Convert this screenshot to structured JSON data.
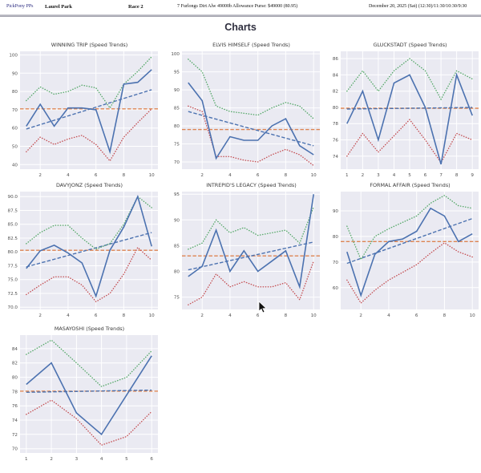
{
  "header": {
    "app": "PickPony PPs",
    "track": "Laurel Park",
    "race": "Race 2",
    "conditions": "7 Furlongs Dirt Alw 49000b Allowance Purse: $49000 (80.95)",
    "datetime": "December 20, 2025 (Sat) (12:30)/11:30/10:30/9:30"
  },
  "page_title": "Charts",
  "colors": {
    "speed_line": "#4c72b0",
    "upper_band": "#55a868",
    "lower_band": "#c44e52",
    "mean_line": "#dd8452",
    "trend_line": "#4c72b0",
    "plot_background": "#eaeaf2",
    "grid": "#ffffff"
  },
  "chart_data": [
    {
      "type": "line",
      "title": "WINNING TRIP (Speed Trends)",
      "x": [
        1,
        2,
        3,
        4,
        5,
        6,
        7,
        8,
        9,
        10
      ],
      "xticks": [
        2,
        4,
        6,
        8,
        10
      ],
      "yticks": [
        "40",
        "50",
        "60",
        "70",
        "80",
        "90",
        "100"
      ],
      "ylim": [
        37.5,
        102
      ],
      "grid": true,
      "series": [
        {
          "name": "mean",
          "style": "dashed",
          "color": "#dd8452",
          "flat": 70.5
        },
        {
          "name": "trend",
          "style": "dashed",
          "color": "#4c72b0",
          "line": [
            59.5,
            81
          ]
        },
        {
          "name": "upper-band",
          "style": "dotted",
          "color": "#55a868",
          "values": [
            75,
            82.5,
            78.5,
            80,
            83.5,
            82,
            71,
            84,
            91,
            99
          ]
        },
        {
          "name": "lower-band",
          "style": "dotted",
          "color": "#c44e52",
          "values": [
            47,
            55,
            51,
            54,
            56,
            51,
            42,
            55,
            63,
            70.5
          ]
        },
        {
          "name": "speed",
          "style": "solid",
          "color": "#4c72b0",
          "values": [
            61,
            73,
            61,
            71,
            71,
            70,
            47,
            84,
            85,
            92
          ]
        }
      ]
    },
    {
      "type": "line",
      "title": "ELVIS HIMSELF (Speed Trends)",
      "x": [
        1,
        2,
        3,
        4,
        5,
        6,
        7,
        8,
        9,
        10
      ],
      "xticks": [
        2,
        4,
        6,
        8,
        10
      ],
      "yticks": [
        "70",
        "75",
        "80",
        "85",
        "90",
        "95",
        "100"
      ],
      "ylim": [
        68,
        100.7
      ],
      "grid": true,
      "series": [
        {
          "name": "mean",
          "style": "dashed",
          "color": "#dd8452",
          "flat": 79
        },
        {
          "name": "trend",
          "style": "dashed",
          "color": "#4c72b0",
          "line": [
            84,
            74.5
          ]
        },
        {
          "name": "upper-band",
          "style": "dotted",
          "color": "#55a868",
          "values": [
            98.5,
            95,
            85.5,
            84,
            83.5,
            83,
            85,
            86.5,
            85.5,
            82
          ]
        },
        {
          "name": "lower-band",
          "style": "dotted",
          "color": "#c44e52",
          "values": [
            85.5,
            84,
            71.5,
            71.5,
            70.5,
            70,
            72,
            73.5,
            72,
            69
          ]
        },
        {
          "name": "speed",
          "style": "solid",
          "color": "#4c72b0",
          "values": [
            92,
            87,
            71,
            77,
            76,
            76,
            80,
            82,
            74.5,
            72
          ]
        }
      ]
    },
    {
      "type": "line",
      "title": "GLUCKSTADT (Speed Trends)",
      "x": [
        1,
        2,
        3,
        4,
        5,
        6,
        7,
        8,
        9
      ],
      "xticks": [
        1,
        2,
        3,
        4,
        5,
        6,
        7,
        8,
        9
      ],
      "yticks": [
        "74",
        "76",
        "78",
        "80",
        "82",
        "84",
        "86"
      ],
      "ylim": [
        72.4,
        86.9
      ],
      "grid": true,
      "series": [
        {
          "name": "mean",
          "style": "dashed",
          "color": "#dd8452",
          "flat": 79.9
        },
        {
          "name": "trend",
          "style": "dashed",
          "color": "#4c72b0",
          "line": [
            79.8,
            80
          ]
        },
        {
          "name": "upper-band",
          "style": "dotted",
          "color": "#55a868",
          "values": [
            82,
            84.5,
            82,
            84.5,
            86,
            84.5,
            81,
            84.5,
            83.5
          ]
        },
        {
          "name": "lower-band",
          "style": "dotted",
          "color": "#c44e52",
          "values": [
            74,
            76.8,
            74.5,
            76.5,
            78.5,
            76,
            73.2,
            76.8,
            76
          ]
        },
        {
          "name": "speed",
          "style": "solid",
          "color": "#4c72b0",
          "values": [
            78,
            82,
            76,
            83,
            84,
            80,
            73,
            84,
            79
          ]
        }
      ]
    },
    {
      "type": "line",
      "title": "DAVYJONZ (Speed Trends)",
      "x": [
        1,
        2,
        3,
        4,
        5,
        6,
        7,
        8,
        9,
        10
      ],
      "xticks": [
        2,
        4,
        6,
        8,
        10
      ],
      "yticks": [
        "70.0",
        "72.5",
        "75.0",
        "77.5",
        "80.0",
        "82.5",
        "85.0",
        "87.5",
        "90.0"
      ],
      "ylim": [
        69.6,
        90.9
      ],
      "grid": true,
      "series": [
        {
          "name": "mean",
          "style": "dashed",
          "color": "#dd8452",
          "flat": 80.3
        },
        {
          "name": "trend",
          "style": "dashed",
          "color": "#4c72b0",
          "line": [
            77.3,
            83.5
          ]
        },
        {
          "name": "upper-band",
          "style": "dotted",
          "color": "#55a868",
          "values": [
            81.5,
            83.5,
            84.8,
            84.8,
            82.5,
            80.5,
            81.5,
            85,
            90,
            88
          ]
        },
        {
          "name": "lower-band",
          "style": "dotted",
          "color": "#c44e52",
          "values": [
            72.3,
            74,
            75.5,
            75.5,
            74,
            71,
            72.5,
            76,
            80.8,
            78.5
          ]
        },
        {
          "name": "speed",
          "style": "solid",
          "color": "#4c72b0",
          "values": [
            77,
            80.2,
            81.2,
            79.8,
            78,
            72,
            80.3,
            84.5,
            90,
            81
          ]
        }
      ]
    },
    {
      "type": "line",
      "title": "INTREPID'S LEGACY (Speed Trends)",
      "x": [
        1,
        2,
        3,
        4,
        5,
        6,
        7,
        8,
        9,
        10
      ],
      "xticks": [
        2,
        4,
        6,
        8,
        10
      ],
      "yticks": [
        "75",
        "80",
        "85",
        "90",
        "95"
      ],
      "ylim": [
        72.6,
        95.5
      ],
      "grid": true,
      "series": [
        {
          "name": "mean",
          "style": "dashed",
          "color": "#dd8452",
          "flat": 83
        },
        {
          "name": "trend",
          "style": "dashed",
          "color": "#4c72b0",
          "line": [
            80.3,
            85.7
          ]
        },
        {
          "name": "upper-band",
          "style": "dotted",
          "color": "#55a868",
          "values": [
            84.3,
            85.5,
            90,
            87.5,
            88.5,
            87,
            87.5,
            88,
            85.5,
            92.5
          ]
        },
        {
          "name": "lower-band",
          "style": "dotted",
          "color": "#c44e52",
          "values": [
            73.5,
            75,
            79.5,
            77,
            78,
            77,
            77,
            77.8,
            74.5,
            82
          ]
        },
        {
          "name": "speed",
          "style": "solid",
          "color": "#4c72b0",
          "values": [
            79,
            81,
            88,
            80,
            84,
            80,
            82,
            84,
            77,
            95
          ]
        }
      ]
    },
    {
      "type": "line",
      "title": "FORMAL AFFAIR (Speed Trends)",
      "x": [
        1,
        2,
        3,
        4,
        5,
        6,
        7,
        8,
        9,
        10
      ],
      "xticks": [
        2,
        4,
        6,
        8,
        10
      ],
      "yticks": [
        "60",
        "70",
        "80",
        "90"
      ],
      "ylim": [
        51.5,
        97.5
      ],
      "grid": true,
      "series": [
        {
          "name": "mean",
          "style": "dashed",
          "color": "#dd8452",
          "flat": 78
        },
        {
          "name": "trend",
          "style": "dashed",
          "color": "#4c72b0",
          "line": [
            69.5,
            87
          ]
        },
        {
          "name": "upper-band",
          "style": "dotted",
          "color": "#55a868",
          "values": [
            84,
            71,
            80,
            83,
            85.5,
            88,
            93,
            96,
            92,
            91
          ]
        },
        {
          "name": "lower-band",
          "style": "dotted",
          "color": "#c44e52",
          "values": [
            63,
            54,
            59,
            63,
            66,
            69,
            73.5,
            77.5,
            74,
            72
          ]
        },
        {
          "name": "speed",
          "style": "solid",
          "color": "#4c72b0",
          "values": [
            74,
            57,
            73,
            78,
            79,
            82,
            91,
            88,
            78,
            81
          ]
        }
      ]
    },
    {
      "type": "line",
      "title": "MASAYOSHI (Speed Trends)",
      "x": [
        1,
        2,
        3,
        4,
        5,
        6
      ],
      "xticks": [
        1,
        2,
        3,
        4,
        5,
        6
      ],
      "yticks": [
        "70",
        "72",
        "74",
        "76",
        "78",
        "80",
        "82",
        "84"
      ],
      "ylim": [
        69.4,
        85.9
      ],
      "grid": true,
      "series": [
        {
          "name": "mean",
          "style": "dashed",
          "color": "#dd8452",
          "flat": 78.05
        },
        {
          "name": "trend",
          "style": "dashed",
          "color": "#4c72b0",
          "line": [
            77.9,
            78.2
          ]
        },
        {
          "name": "upper-band",
          "style": "dotted",
          "color": "#55a868",
          "values": [
            83.2,
            85.2,
            82,
            78.7,
            80,
            83.7
          ]
        },
        {
          "name": "lower-band",
          "style": "dotted",
          "color": "#c44e52",
          "values": [
            74.8,
            76.8,
            74.2,
            70.5,
            71.7,
            75.2
          ]
        },
        {
          "name": "speed",
          "style": "solid",
          "color": "#4c72b0",
          "values": [
            79,
            82,
            75,
            72,
            77.5,
            83
          ]
        }
      ]
    }
  ]
}
